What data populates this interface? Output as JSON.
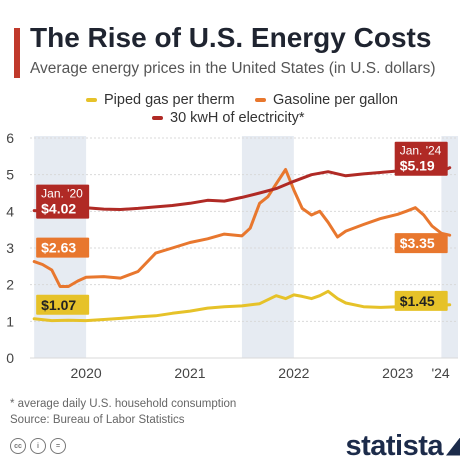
{
  "title": "The Rise of U.S. Energy Costs",
  "subtitle": "Average energy prices in the United States (in U.S. dollars)",
  "footnote": "* average daily U.S. household consumption",
  "source": "Source: Bureau of Labor Statistics",
  "brand": "statista",
  "cc_icons": [
    "cc-icon",
    "by-icon",
    "nd-icon"
  ],
  "colors": {
    "accent": "#c0392b",
    "gas": "#e6c229",
    "gasoline": "#e8772e",
    "electricity": "#b02a25",
    "highlight_band": "#e6ebf2"
  },
  "chart_data": {
    "type": "line",
    "title": "The Rise of U.S. Energy Costs",
    "xlabel": "",
    "ylabel": "",
    "ylim": [
      0,
      6
    ],
    "yticks": [
      "0",
      "1",
      "2",
      "3",
      "4",
      "5",
      "6"
    ],
    "x_tick_labels": [
      "2020",
      "2021",
      "2022",
      "2023",
      "'24"
    ],
    "x_ticks_at": [
      2020.5,
      2021.5,
      2022.5,
      2023.5,
      2024.0
    ],
    "xlim": [
      2019.96,
      2024.08
    ],
    "legend_position": "top",
    "grid": true,
    "series": [
      {
        "name": "Piped gas per therm",
        "color": "#e6c229",
        "x": [
          2020.0,
          2020.17,
          2020.33,
          2020.5,
          2020.67,
          2020.83,
          2021.0,
          2021.17,
          2021.33,
          2021.5,
          2021.67,
          2021.83,
          2022.0,
          2022.17,
          2022.33,
          2022.42,
          2022.5,
          2022.58,
          2022.67,
          2022.75,
          2022.83,
          2022.92,
          2023.0,
          2023.17,
          2023.33,
          2023.5,
          2023.67,
          2023.83,
          2024.0
        ],
        "values": [
          1.07,
          1.02,
          1.03,
          1.02,
          1.05,
          1.08,
          1.12,
          1.15,
          1.22,
          1.28,
          1.36,
          1.4,
          1.42,
          1.48,
          1.7,
          1.62,
          1.72,
          1.68,
          1.62,
          1.7,
          1.82,
          1.62,
          1.5,
          1.4,
          1.38,
          1.4,
          1.38,
          1.42,
          1.45
        ]
      },
      {
        "name": "Gasoline per gallon",
        "color": "#e8772e",
        "x": [
          2020.0,
          2020.08,
          2020.17,
          2020.25,
          2020.33,
          2020.42,
          2020.5,
          2020.67,
          2020.83,
          2021.0,
          2021.17,
          2021.33,
          2021.5,
          2021.67,
          2021.83,
          2022.0,
          2022.08,
          2022.17,
          2022.25,
          2022.33,
          2022.42,
          2022.5,
          2022.58,
          2022.67,
          2022.75,
          2022.83,
          2022.92,
          2023.0,
          2023.17,
          2023.33,
          2023.5,
          2023.58,
          2023.67,
          2023.75,
          2023.83,
          2023.92,
          2024.0
        ],
        "values": [
          2.63,
          2.55,
          2.4,
          1.95,
          1.95,
          2.1,
          2.2,
          2.22,
          2.18,
          2.36,
          2.86,
          3.0,
          3.15,
          3.25,
          3.38,
          3.33,
          3.54,
          4.22,
          4.4,
          4.75,
          5.14,
          4.58,
          4.08,
          3.9,
          4.0,
          3.7,
          3.3,
          3.46,
          3.64,
          3.8,
          3.92,
          4.0,
          4.1,
          3.9,
          3.6,
          3.4,
          3.35
        ]
      },
      {
        "name": "30 kwH of electricity*",
        "color": "#b02a25",
        "x": [
          2020.0,
          2020.17,
          2020.33,
          2020.5,
          2020.67,
          2020.83,
          2021.0,
          2021.17,
          2021.33,
          2021.5,
          2021.67,
          2021.83,
          2022.0,
          2022.17,
          2022.33,
          2022.5,
          2022.67,
          2022.83,
          2023.0,
          2023.17,
          2023.33,
          2023.5,
          2023.67,
          2023.83,
          2023.92,
          2024.0
        ],
        "values": [
          4.02,
          4.0,
          4.05,
          4.1,
          4.06,
          4.05,
          4.08,
          4.12,
          4.16,
          4.22,
          4.3,
          4.28,
          4.38,
          4.5,
          4.62,
          4.82,
          5.0,
          5.08,
          4.97,
          5.02,
          5.06,
          5.1,
          5.13,
          5.12,
          5.08,
          5.19
        ]
      }
    ],
    "annotations": [
      {
        "series": 2,
        "point": 0,
        "title": "Jan. '20",
        "value": "$4.02",
        "side": "left"
      },
      {
        "series": 1,
        "point": 0,
        "title": "",
        "value": "$2.63",
        "side": "left"
      },
      {
        "series": 0,
        "point": 0,
        "title": "",
        "value": "$1.07",
        "side": "left"
      },
      {
        "series": 2,
        "point": 25,
        "title": "Jan. '24",
        "value": "$5.19",
        "side": "right"
      },
      {
        "series": 1,
        "point": 36,
        "title": "",
        "value": "$3.35",
        "side": "right"
      },
      {
        "series": 0,
        "point": 28,
        "title": "",
        "value": "$1.45",
        "side": "right"
      }
    ],
    "highlight_bands": [
      [
        2020.0,
        2020.5
      ],
      [
        2022.0,
        2022.5
      ],
      [
        2023.92,
        2024.08
      ]
    ]
  }
}
